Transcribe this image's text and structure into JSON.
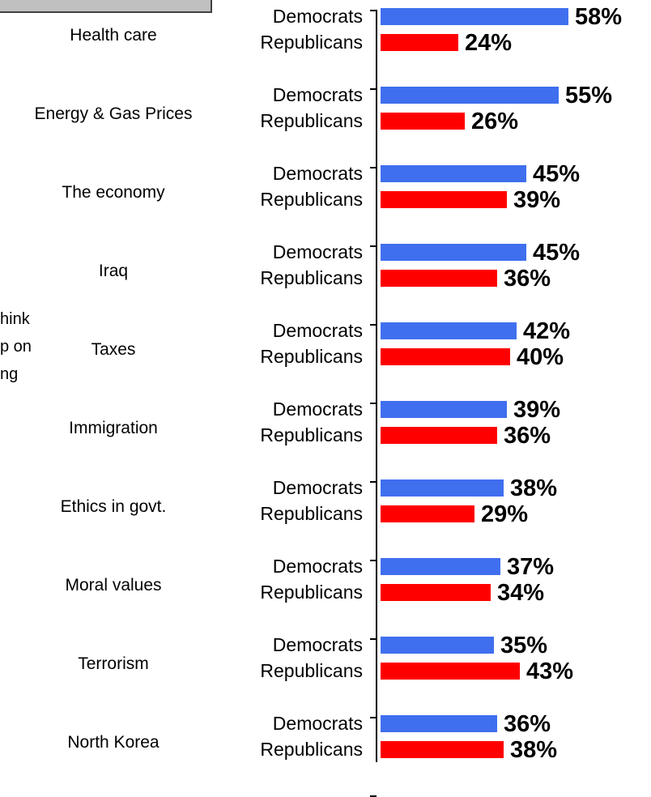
{
  "legend": {
    "fill_color": "#c0c0c0"
  },
  "side_note": [
    "hink",
    "p on",
    "ng"
  ],
  "colors": {
    "democrats": "#3f6fee",
    "republicans": "#ff0000"
  },
  "chart_data": {
    "type": "bar",
    "orientation": "horizontal",
    "categories": [
      "Health care",
      "Energy & Gas Prices",
      "The economy",
      "Iraq",
      "Taxes",
      "Immigration",
      "Ethics in govt.",
      "Moral values",
      "Terrorism",
      "North Korea"
    ],
    "series": [
      {
        "name": "Democrats",
        "values": [
          58,
          55,
          45,
          45,
          42,
          39,
          38,
          37,
          35,
          36
        ]
      },
      {
        "name": "Republicans",
        "values": [
          24,
          26,
          39,
          36,
          40,
          36,
          29,
          34,
          43,
          38
        ]
      }
    ],
    "labels": {
      "Democrats": [
        "58%",
        "55%",
        "45%",
        "45%",
        "42%",
        "39%",
        "38%",
        "37%",
        "35%",
        "36%"
      ],
      "Republicans": [
        "24%",
        "26%",
        "39%",
        "36%",
        "40%",
        "36%",
        "29%",
        "34%",
        "43%",
        "38%"
      ]
    },
    "value_suffix": "%",
    "xlim": [
      0,
      60
    ],
    "grid": false,
    "legend": "none"
  }
}
